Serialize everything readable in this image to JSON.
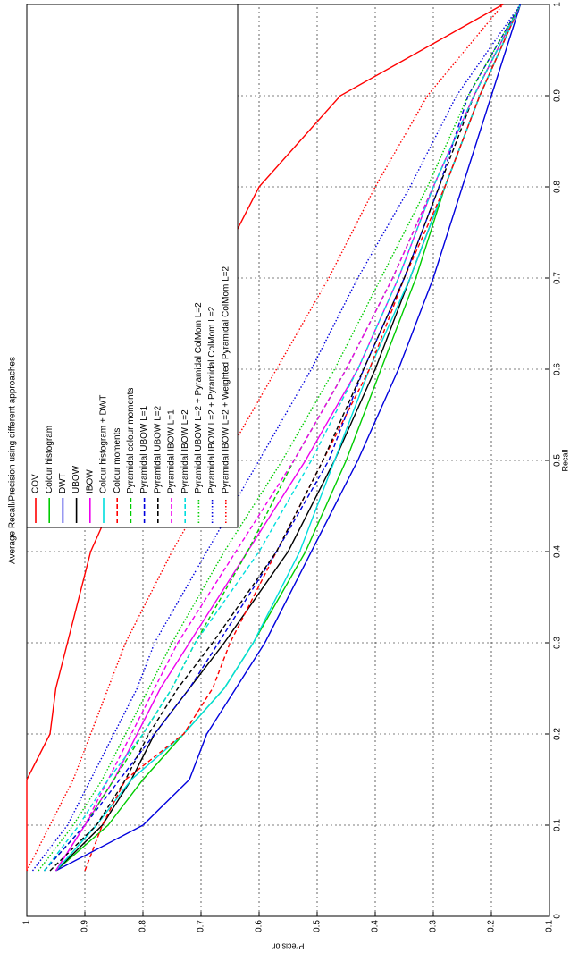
{
  "chart_data": {
    "type": "line",
    "title": "Average Recall/Precision using different approaches",
    "x_label": "Recall",
    "y_label": "Precision",
    "x": [
      0.05,
      0.1,
      0.15,
      0.2,
      0.25,
      0.3,
      0.4,
      0.5,
      0.6,
      0.7,
      0.8,
      0.9,
      1.0
    ],
    "xlim": [
      0,
      1
    ],
    "xticks": [
      0,
      0.1,
      0.2,
      0.3,
      0.4,
      0.5,
      0.6,
      0.7,
      0.8,
      0.9,
      1
    ],
    "ylim": [
      0.1,
      1
    ],
    "yticks": [
      0.1,
      0.2,
      0.3,
      0.4,
      0.5,
      0.6,
      0.7,
      0.8,
      0.9,
      1
    ],
    "grid": true,
    "legend": "top-right",
    "series": [
      {
        "name": "COV",
        "color": "#ff0000",
        "style": "solid",
        "values": [
          1,
          1,
          1,
          0.96,
          0.95,
          0.93,
          0.89,
          0.82,
          0.74,
          0.68,
          0.6,
          0.46,
          0.18
        ]
      },
      {
        "name": "Colour histogram",
        "color": "#00cc00",
        "style": "solid",
        "values": [
          0.95,
          0.86,
          0.8,
          0.73,
          0.66,
          0.61,
          0.52,
          0.45,
          0.39,
          0.33,
          0.28,
          0.22,
          0.15
        ]
      },
      {
        "name": "DWT",
        "color": "#0000dd",
        "style": "solid",
        "values": [
          0.95,
          0.8,
          0.72,
          0.69,
          0.64,
          0.59,
          0.51,
          0.43,
          0.36,
          0.3,
          0.25,
          0.2,
          0.15
        ]
      },
      {
        "name": "UBOW",
        "color": "#000000",
        "style": "solid",
        "values": [
          0.95,
          0.87,
          0.82,
          0.78,
          0.72,
          0.66,
          0.55,
          0.47,
          0.4,
          0.34,
          0.28,
          0.22,
          0.15
        ]
      },
      {
        "name": "IBOW",
        "color": "#ee00ee",
        "style": "solid",
        "values": [
          0.95,
          0.9,
          0.85,
          0.81,
          0.77,
          0.72,
          0.62,
          0.52,
          0.43,
          0.36,
          0.3,
          0.23,
          0.15
        ]
      },
      {
        "name": "Colour histogram + DWT",
        "color": "#00dddd",
        "style": "solid",
        "values": [
          0.95,
          0.88,
          0.82,
          0.73,
          0.66,
          0.61,
          0.53,
          0.47,
          0.41,
          0.34,
          0.28,
          0.22,
          0.15
        ]
      },
      {
        "name": "Colour moments",
        "color": "#ff0000",
        "style": "dashed",
        "values": [
          0.9,
          0.87,
          0.83,
          0.73,
          0.68,
          0.65,
          0.57,
          0.49,
          0.41,
          0.35,
          0.28,
          0.22,
          0.15
        ]
      },
      {
        "name": "Pyramidal colour moments",
        "color": "#00cc00",
        "style": "dashed",
        "values": [
          0.97,
          0.9,
          0.85,
          0.8,
          0.75,
          0.71,
          0.62,
          0.54,
          0.45,
          0.37,
          0.3,
          0.23,
          0.15
        ]
      },
      {
        "name": "Pyramidal UBOW L=1",
        "color": "#0000dd",
        "style": "dashed",
        "values": [
          0.97,
          0.9,
          0.84,
          0.78,
          0.72,
          0.67,
          0.57,
          0.48,
          0.42,
          0.35,
          0.29,
          0.24,
          0.15
        ]
      },
      {
        "name": "Pyramidal UBOW L=2",
        "color": "#000000",
        "style": "dashed",
        "values": [
          0.96,
          0.88,
          0.83,
          0.79,
          0.74,
          0.68,
          0.57,
          0.49,
          0.42,
          0.35,
          0.29,
          0.23,
          0.15
        ]
      },
      {
        "name": "Pyramidal IBOW L=1",
        "color": "#ee00ee",
        "style": "dashed",
        "values": [
          0.95,
          0.9,
          0.86,
          0.82,
          0.78,
          0.74,
          0.64,
          0.54,
          0.45,
          0.37,
          0.3,
          0.23,
          0.15
        ]
      },
      {
        "name": "Pyramidal IBOW L=2",
        "color": "#00dddd",
        "style": "dashed",
        "values": [
          0.97,
          0.91,
          0.86,
          0.8,
          0.75,
          0.71,
          0.6,
          0.51,
          0.43,
          0.36,
          0.3,
          0.23,
          0.15
        ]
      },
      {
        "name": "Pyramidal UBOW L=2 + Pyramidal ColMom L=2",
        "color": "#00cc00",
        "style": "dotted",
        "values": [
          0.98,
          0.92,
          0.87,
          0.83,
          0.79,
          0.75,
          0.66,
          0.56,
          0.47,
          0.39,
          0.31,
          0.24,
          0.15
        ]
      },
      {
        "name": "Pyramidal IBOW L=2 + Pyramidal ColMom L=2",
        "color": "#0000dd",
        "style": "dotted",
        "values": [
          0.99,
          0.93,
          0.89,
          0.85,
          0.81,
          0.78,
          0.69,
          0.6,
          0.51,
          0.43,
          0.34,
          0.26,
          0.15
        ]
      },
      {
        "name": "Pyramidal IBOW L=2 + Weighted Pyramidal ColMom L=2",
        "color": "#ff0000",
        "style": "dotted",
        "values": [
          1,
          0.96,
          0.92,
          0.89,
          0.86,
          0.83,
          0.75,
          0.66,
          0.57,
          0.48,
          0.4,
          0.31,
          0.18
        ]
      }
    ]
  }
}
